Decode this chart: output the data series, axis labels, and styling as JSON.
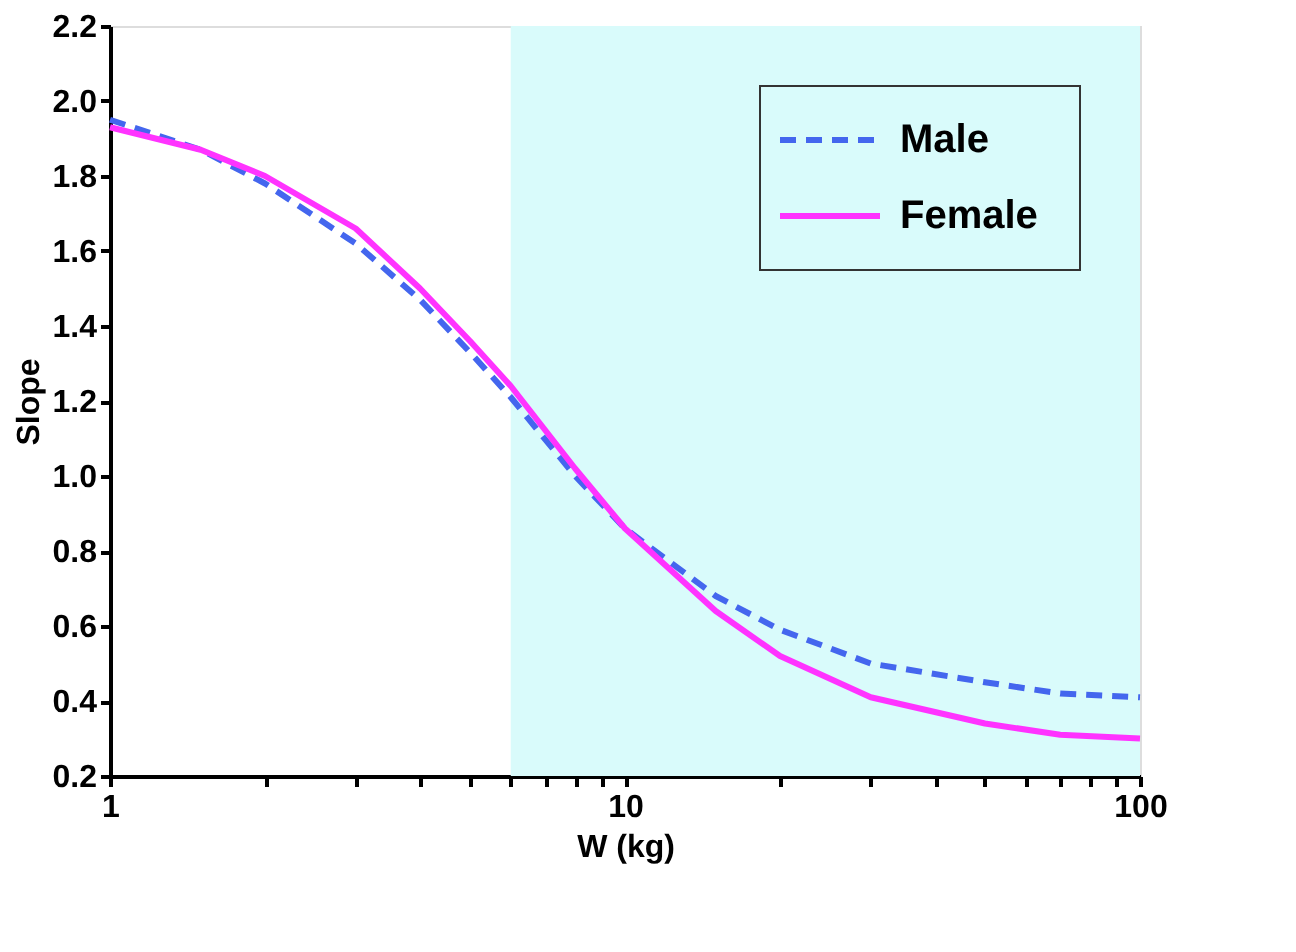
{
  "chart_data": {
    "type": "line",
    "xlabel": "W (kg)",
    "ylabel": "Slope",
    "x": [
      1,
      1.5,
      2,
      3,
      4,
      5,
      6,
      8,
      10,
      15,
      20,
      30,
      50,
      70,
      100
    ],
    "series": [
      {
        "name": "Male",
        "color": "#4466ee",
        "line_style": "dashed",
        "values": [
          1.95,
          1.87,
          1.78,
          1.62,
          1.47,
          1.33,
          1.21,
          1.0,
          0.86,
          0.68,
          0.59,
          0.5,
          0.45,
          0.42,
          0.41
        ]
      },
      {
        "name": "Female",
        "color": "#ff33ff",
        "line_style": "solid",
        "values": [
          1.93,
          1.87,
          1.8,
          1.66,
          1.5,
          1.36,
          1.24,
          1.02,
          0.86,
          0.64,
          0.52,
          0.41,
          0.34,
          0.31,
          0.3
        ]
      }
    ],
    "log": "x",
    "xlim": [
      1,
      100
    ],
    "xticks": [
      1,
      {
        "value": 2,
        "label": null
      },
      {
        "value": 3,
        "label": null
      },
      {
        "value": 4,
        "label": null
      },
      {
        "value": 5,
        "label": null
      },
      {
        "value": 6,
        "label": null
      },
      {
        "value": 7,
        "label": null
      },
      {
        "value": 8,
        "label": null
      },
      {
        "value": 9,
        "label": null
      },
      10,
      {
        "value": 20,
        "label": null
      },
      {
        "value": 30,
        "label": null
      },
      {
        "value": 40,
        "label": null
      },
      {
        "value": 50,
        "label": null
      },
      {
        "value": 60,
        "label": null
      },
      {
        "value": 70,
        "label": null
      },
      {
        "value": 80,
        "label": null
      },
      {
        "value": 90,
        "label": null
      },
      100
    ],
    "ylim": [
      0.2,
      2.2
    ],
    "yticks": [
      0.2,
      0.4,
      0.6,
      0.8,
      {
        "value": 1,
        "label": "1.0"
      },
      1.2,
      1.4,
      1.6,
      1.8,
      {
        "value": 2,
        "label": "2.0"
      },
      2.2
    ],
    "bands": [
      {
        "axis": "x",
        "from": 6,
        "to": 100,
        "color": "#d9fbfb"
      }
    ],
    "grid": false,
    "legend": "top right",
    "marker": "none"
  }
}
